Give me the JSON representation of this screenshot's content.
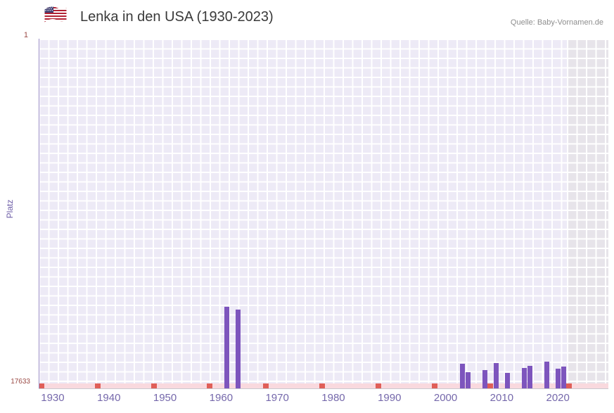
{
  "header": {
    "title": "Lenka in den USA (1930-2023)",
    "source": "Quelle: Baby-Vornamen.de",
    "flag_icon": "us-flag-icon"
  },
  "chart_data": {
    "type": "bar",
    "title": "Lenka in den USA (1930-2023)",
    "xlabel": "",
    "ylabel": "Platz",
    "y_axis": {
      "min": 1,
      "max": 17633,
      "inverted": true,
      "top_label": "1",
      "bottom_label": "17633"
    },
    "x_domain": [
      1927.5,
      2029
    ],
    "x_ticks": [
      1930,
      1940,
      1950,
      1960,
      1970,
      1980,
      1990,
      2000,
      2010,
      2020
    ],
    "bars": [
      {
        "year": 1961,
        "rank": 13750
      },
      {
        "year": 1963,
        "rank": 13880
      },
      {
        "year": 2003,
        "rank": 16650
      },
      {
        "year": 2004,
        "rank": 17080
      },
      {
        "year": 2007,
        "rank": 17000
      },
      {
        "year": 2009,
        "rank": 16640
      },
      {
        "year": 2011,
        "rank": 17130
      },
      {
        "year": 2014,
        "rank": 16880
      },
      {
        "year": 2015,
        "rank": 16760
      },
      {
        "year": 2018,
        "rank": 16560
      },
      {
        "year": 2020,
        "rank": 16900
      },
      {
        "year": 2021,
        "rank": 16800
      }
    ],
    "no_data_marker_years": [
      1928,
      1938,
      1948,
      1958,
      1968,
      1978,
      1988,
      1998,
      2008,
      2022
    ],
    "recent_band_from": 2021.55,
    "grid": true,
    "legend_position": "none",
    "colors": {
      "bar": "#7d55bd",
      "no_data_strip": "#f9d9de",
      "no_data_marker": "#e05f58",
      "plot_bg": "#edeaf6",
      "band_bg": "#e7e4ea",
      "grid_line": "#ffffff",
      "tick_text": "#7568ab",
      "y_extreme_text": "#9a4a45",
      "title_text": "#3a3a3a",
      "source_text": "#8e8e8e"
    }
  }
}
